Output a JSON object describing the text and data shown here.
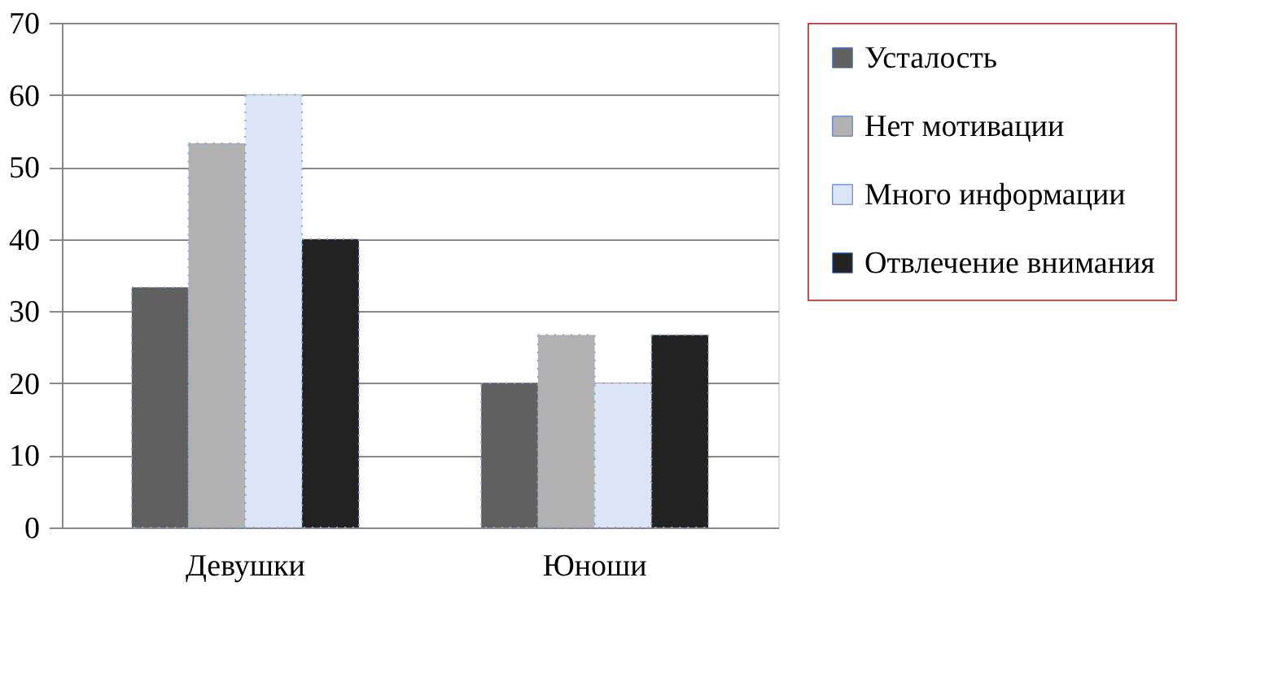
{
  "chart_data": {
    "type": "bar",
    "categories": [
      "Девушки",
      "Юноши"
    ],
    "series": [
      {
        "name": "Усталость",
        "color": "#606060",
        "values": [
          33.3,
          20
        ]
      },
      {
        "name": "Нет мотивации",
        "color": "#b2b2b2",
        "values": [
          53.3,
          26.7
        ]
      },
      {
        "name": "Много информации",
        "color": "#dbe5f5",
        "values": [
          60,
          20
        ]
      },
      {
        "name": "Отвлечение внимания",
        "color": "#222222",
        "values": [
          40,
          26.7
        ]
      }
    ],
    "ylim": [
      0,
      70
    ],
    "yticks": [
      0,
      10,
      20,
      30,
      40,
      50,
      60,
      70
    ],
    "grid": "y",
    "legend": "right"
  }
}
